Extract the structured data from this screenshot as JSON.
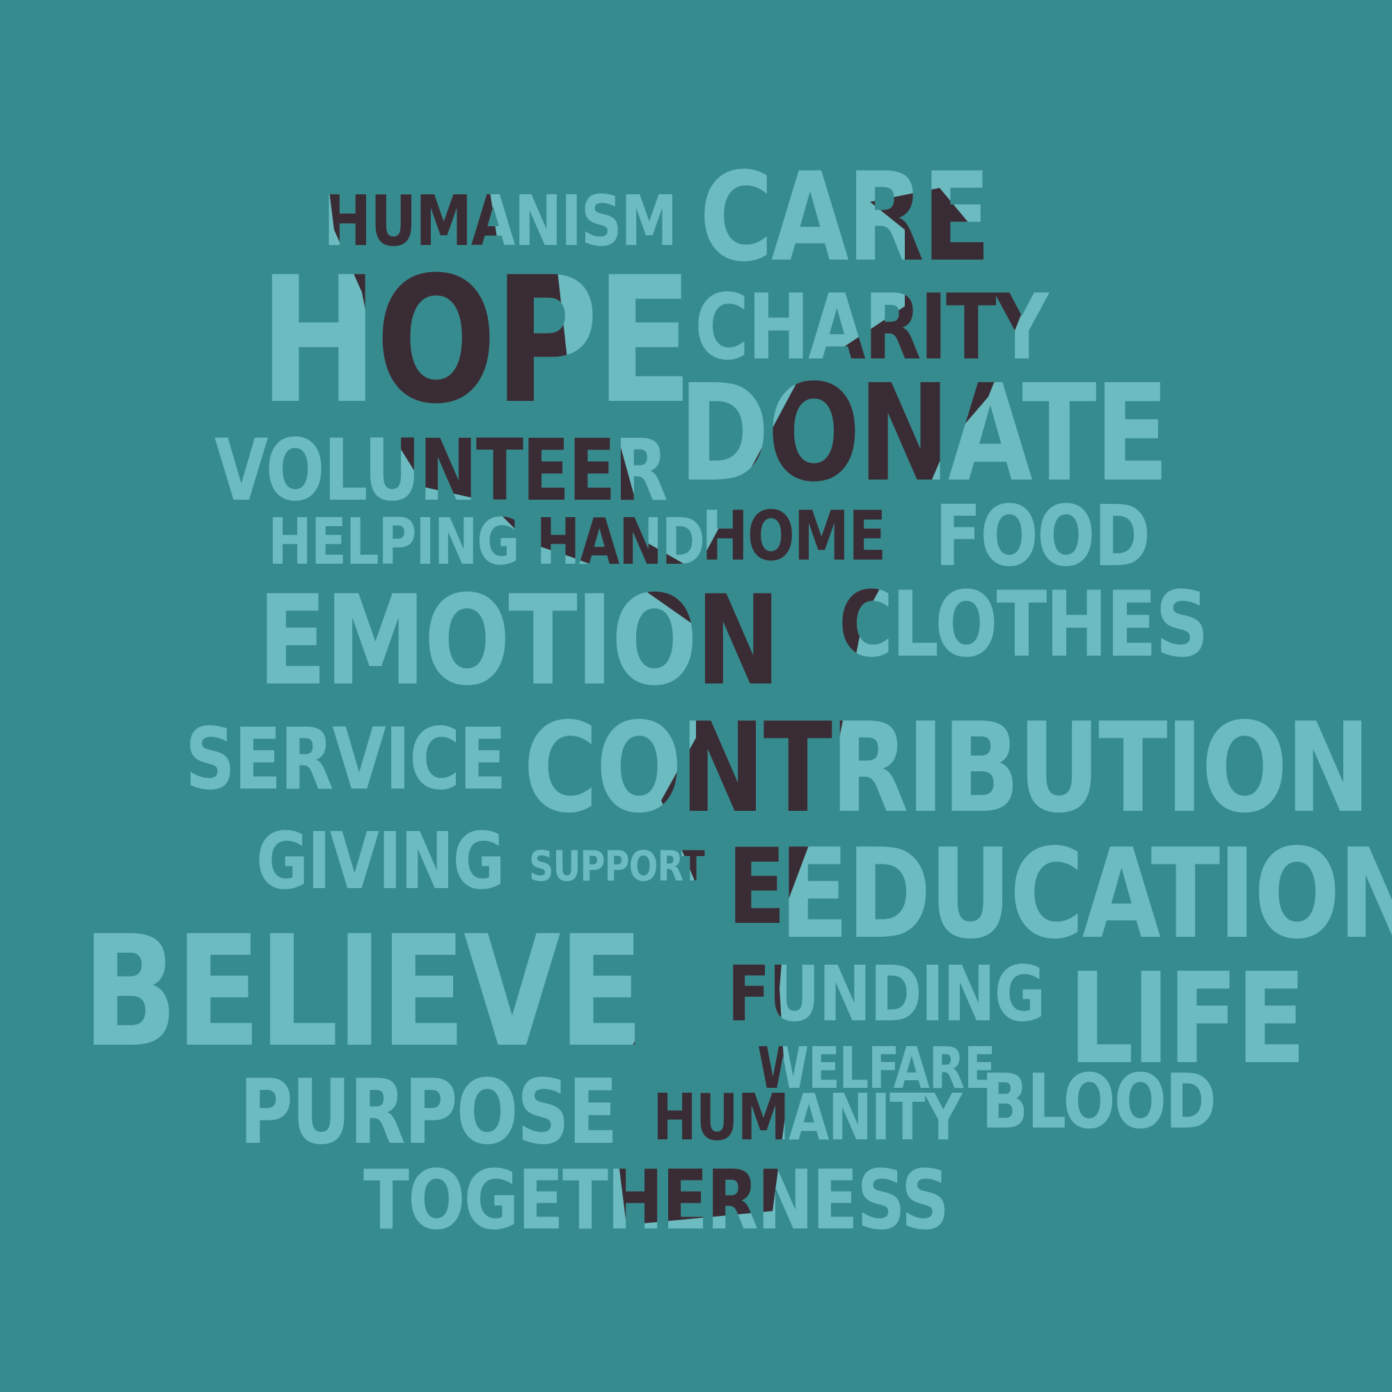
{
  "colors": {
    "background": "#368b8f",
    "word_light": "#6bbbc0",
    "word_dark": "#3a2c34"
  },
  "words": [
    {
      "key": "humanism",
      "text": "HUMANISM"
    },
    {
      "key": "care",
      "text": "CARE"
    },
    {
      "key": "hope",
      "text": "HOPE"
    },
    {
      "key": "charity",
      "text": "CHARITY"
    },
    {
      "key": "donate",
      "text": "DONATE"
    },
    {
      "key": "volunteer",
      "text": "VOLUNTEER"
    },
    {
      "key": "helping_hand",
      "text": "HELPING HAND"
    },
    {
      "key": "home",
      "text": "HOME"
    },
    {
      "key": "food",
      "text": "FOOD"
    },
    {
      "key": "emotion",
      "text": "EMOTION"
    },
    {
      "key": "clothes",
      "text": "CLOTHES"
    },
    {
      "key": "service",
      "text": "SERVICE"
    },
    {
      "key": "contribution",
      "text": "CONTRIBUTION"
    },
    {
      "key": "giving",
      "text": "GIVING"
    },
    {
      "key": "support",
      "text": "SUPPORT"
    },
    {
      "key": "e",
      "text": "E"
    },
    {
      "key": "education",
      "text": "EDUCATION"
    },
    {
      "key": "believe",
      "text": "BELIEVE"
    },
    {
      "key": "funding",
      "text": "FUNDING"
    },
    {
      "key": "life",
      "text": "LIFE"
    },
    {
      "key": "welfare",
      "text": "WELFARE"
    },
    {
      "key": "purpose",
      "text": "PURPOSE"
    },
    {
      "key": "humanity",
      "text": "HUMANITY"
    },
    {
      "key": "blood",
      "text": "BLOOD"
    },
    {
      "key": "togetherness",
      "text": "TOGETHERNESS"
    }
  ]
}
